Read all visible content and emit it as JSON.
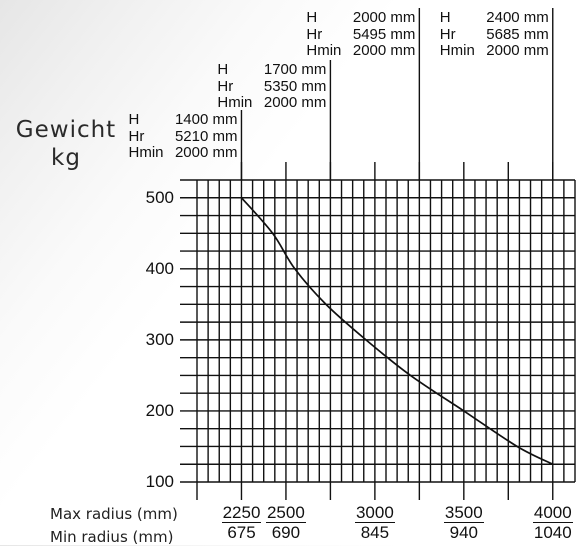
{
  "chart_data": {
    "type": "line",
    "ylabel": "Gewicht",
    "ylabel_unit": "kg",
    "xlabel_max": "Max radius (mm)",
    "xlabel_min": "Min radius (mm)",
    "xlim": [
      2000,
      4125
    ],
    "ylim": [
      100,
      525
    ],
    "yticks": [
      500,
      400,
      300,
      200,
      100
    ],
    "max_radius_ticks": [
      "2250",
      "2500",
      "3000",
      "3500",
      "4000"
    ],
    "min_radius_ticks": [
      "675",
      "690",
      "845",
      "940",
      "1040"
    ],
    "grid": true,
    "series": [
      {
        "x": [
          2250,
          2425,
          2550,
          2725,
          2950,
          3200,
          3500,
          3800,
          4000
        ],
        "y": [
          500,
          450,
          400,
          350,
          300,
          250,
          200,
          150,
          125
        ]
      }
    ],
    "annotations": [
      {
        "x": 2250,
        "rows": [
          {
            "label": "H",
            "value": "1400 mm"
          },
          {
            "label": "Hr",
            "value": "5210 mm"
          },
          {
            "label": "Hmin",
            "value": "2000 mm"
          }
        ]
      },
      {
        "x": 2750,
        "rows": [
          {
            "label": "H",
            "value": "1700 mm"
          },
          {
            "label": "Hr",
            "value": "5350 mm"
          },
          {
            "label": "Hmin",
            "value": "2000 mm"
          }
        ]
      },
      {
        "x": 3250,
        "rows": [
          {
            "label": "H",
            "value": "2000 mm"
          },
          {
            "label": "Hr",
            "value": "5495 mm"
          },
          {
            "label": "Hmin",
            "value": "2000 mm"
          }
        ]
      },
      {
        "x": 4000,
        "rows": [
          {
            "label": "H",
            "value": "2400 mm"
          },
          {
            "label": "Hr",
            "value": "5685 mm"
          },
          {
            "label": "Hmin",
            "value": "2000 mm"
          }
        ]
      }
    ]
  },
  "colors": {
    "ink": "#111111"
  }
}
